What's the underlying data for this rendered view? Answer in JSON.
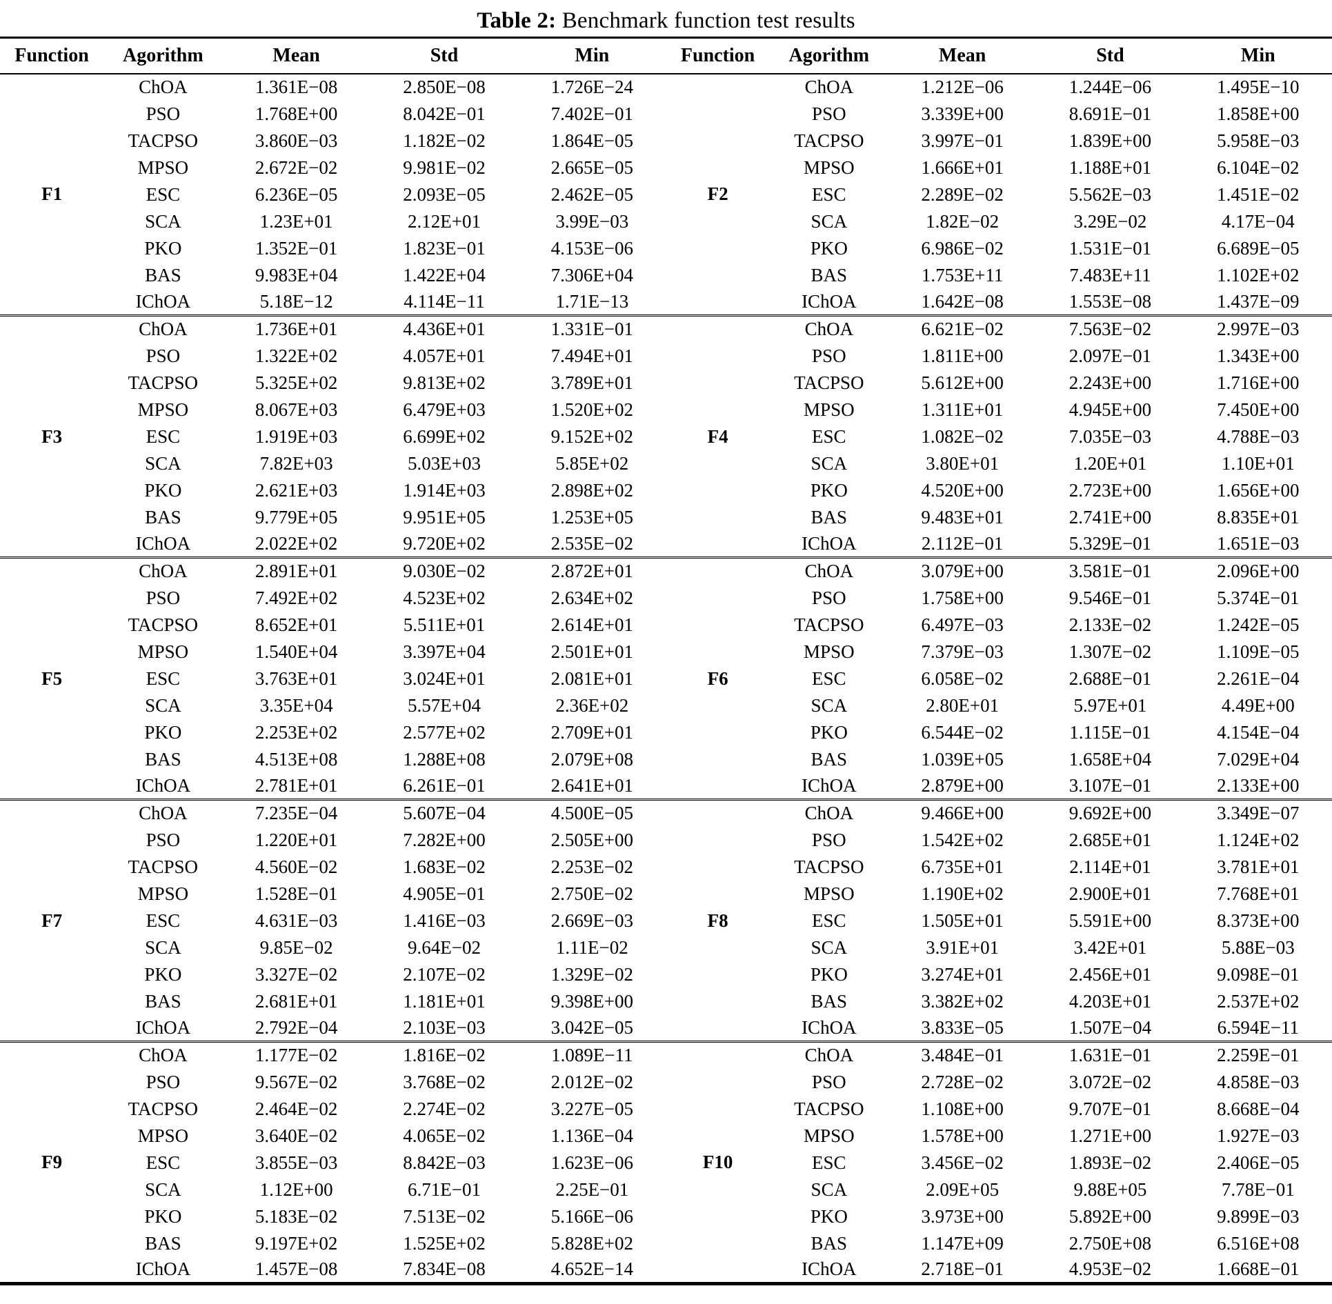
{
  "title": {
    "bold": "Table 2:",
    "text": " Benchmark function test results"
  },
  "header": {
    "columns": [
      "Function",
      "Agorithm",
      "Mean",
      "Std",
      "Min"
    ]
  },
  "table": {
    "blocks": [
      {
        "left": {
          "function": "F1",
          "rows": [
            {
              "algorithm": "ChOA",
              "mean": "1.361E−08",
              "std": "2.850E−08",
              "min": "1.726E−24"
            },
            {
              "algorithm": "PSO",
              "mean": "1.768E+00",
              "std": "8.042E−01",
              "min": "7.402E−01"
            },
            {
              "algorithm": "TACPSO",
              "mean": "3.860E−03",
              "std": "1.182E−02",
              "min": "1.864E−05"
            },
            {
              "algorithm": "MPSO",
              "mean": "2.672E−02",
              "std": "9.981E−02",
              "min": "2.665E−05"
            },
            {
              "algorithm": "ESC",
              "mean": "6.236E−05",
              "std": "2.093E−05",
              "min": "2.462E−05"
            },
            {
              "algorithm": "SCA",
              "mean": "1.23E+01",
              "std": "2.12E+01",
              "min": "3.99E−03"
            },
            {
              "algorithm": "PKO",
              "mean": "1.352E−01",
              "std": "1.823E−01",
              "min": "4.153E−06"
            },
            {
              "algorithm": "BAS",
              "mean": "9.983E+04",
              "std": "1.422E+04",
              "min": "7.306E+04"
            },
            {
              "algorithm": "IChOA",
              "mean": "5.18E−12",
              "std": "4.114E−11",
              "min": "1.71E−13"
            }
          ]
        },
        "right": {
          "function": "F2",
          "rows": [
            {
              "algorithm": "ChOA",
              "mean": "1.212E−06",
              "std": "1.244E−06",
              "min": "1.495E−10"
            },
            {
              "algorithm": "PSO",
              "mean": "3.339E+00",
              "std": "8.691E−01",
              "min": "1.858E+00"
            },
            {
              "algorithm": "TACPSO",
              "mean": "3.997E−01",
              "std": "1.839E+00",
              "min": "5.958E−03"
            },
            {
              "algorithm": "MPSO",
              "mean": "1.666E+01",
              "std": "1.188E+01",
              "min": "6.104E−02"
            },
            {
              "algorithm": "ESC",
              "mean": "2.289E−02",
              "std": "5.562E−03",
              "min": "1.451E−02"
            },
            {
              "algorithm": "SCA",
              "mean": "1.82E−02",
              "std": "3.29E−02",
              "min": "4.17E−04"
            },
            {
              "algorithm": "PKO",
              "mean": "6.986E−02",
              "std": "1.531E−01",
              "min": "6.689E−05"
            },
            {
              "algorithm": "BAS",
              "mean": "1.753E+11",
              "std": "7.483E+11",
              "min": "1.102E+02"
            },
            {
              "algorithm": "IChOA",
              "mean": "1.642E−08",
              "std": "1.553E−08",
              "min": "1.437E−09"
            }
          ]
        }
      },
      {
        "left": {
          "function": "F3",
          "rows": [
            {
              "algorithm": "ChOA",
              "mean": "1.736E+01",
              "std": "4.436E+01",
              "min": "1.331E−01"
            },
            {
              "algorithm": "PSO",
              "mean": "1.322E+02",
              "std": "4.057E+01",
              "min": "7.494E+01"
            },
            {
              "algorithm": "TACPSO",
              "mean": "5.325E+02",
              "std": "9.813E+02",
              "min": "3.789E+01"
            },
            {
              "algorithm": "MPSO",
              "mean": "8.067E+03",
              "std": "6.479E+03",
              "min": "1.520E+02"
            },
            {
              "algorithm": "ESC",
              "mean": "1.919E+03",
              "std": "6.699E+02",
              "min": "9.152E+02"
            },
            {
              "algorithm": "SCA",
              "mean": "7.82E+03",
              "std": "5.03E+03",
              "min": "5.85E+02"
            },
            {
              "algorithm": "PKO",
              "mean": "2.621E+03",
              "std": "1.914E+03",
              "min": "2.898E+02"
            },
            {
              "algorithm": "BAS",
              "mean": "9.779E+05",
              "std": "9.951E+05",
              "min": "1.253E+05"
            },
            {
              "algorithm": "IChOA",
              "mean": "2.022E+02",
              "std": "9.720E+02",
              "min": "2.535E−02"
            }
          ]
        },
        "right": {
          "function": "F4",
          "rows": [
            {
              "algorithm": "ChOA",
              "mean": "6.621E−02",
              "std": "7.563E−02",
              "min": "2.997E−03"
            },
            {
              "algorithm": "PSO",
              "mean": "1.811E+00",
              "std": "2.097E−01",
              "min": "1.343E+00"
            },
            {
              "algorithm": "TACPSO",
              "mean": "5.612E+00",
              "std": "2.243E+00",
              "min": "1.716E+00"
            },
            {
              "algorithm": "MPSO",
              "mean": "1.311E+01",
              "std": "4.945E+00",
              "min": "7.450E+00"
            },
            {
              "algorithm": "ESC",
              "mean": "1.082E−02",
              "std": "7.035E−03",
              "min": "4.788E−03"
            },
            {
              "algorithm": "SCA",
              "mean": "3.80E+01",
              "std": "1.20E+01",
              "min": "1.10E+01"
            },
            {
              "algorithm": "PKO",
              "mean": "4.520E+00",
              "std": "2.723E+00",
              "min": "1.656E+00"
            },
            {
              "algorithm": "BAS",
              "mean": "9.483E+01",
              "std": "2.741E+00",
              "min": "8.835E+01"
            },
            {
              "algorithm": "IChOA",
              "mean": "2.112E−01",
              "std": "5.329E−01",
              "min": "1.651E−03"
            }
          ]
        }
      },
      {
        "left": {
          "function": "F5",
          "rows": [
            {
              "algorithm": "ChOA",
              "mean": "2.891E+01",
              "std": "9.030E−02",
              "min": "2.872E+01"
            },
            {
              "algorithm": "PSO",
              "mean": "7.492E+02",
              "std": "4.523E+02",
              "min": "2.634E+02"
            },
            {
              "algorithm": "TACPSO",
              "mean": "8.652E+01",
              "std": "5.511E+01",
              "min": "2.614E+01"
            },
            {
              "algorithm": "MPSO",
              "mean": "1.540E+04",
              "std": "3.397E+04",
              "min": "2.501E+01"
            },
            {
              "algorithm": "ESC",
              "mean": "3.763E+01",
              "std": "3.024E+01",
              "min": "2.081E+01"
            },
            {
              "algorithm": "SCA",
              "mean": "3.35E+04",
              "std": "5.57E+04",
              "min": "2.36E+02"
            },
            {
              "algorithm": "PKO",
              "mean": "2.253E+02",
              "std": "2.577E+02",
              "min": "2.709E+01"
            },
            {
              "algorithm": "BAS",
              "mean": "4.513E+08",
              "std": "1.288E+08",
              "min": "2.079E+08"
            },
            {
              "algorithm": "IChOA",
              "mean": "2.781E+01",
              "std": "6.261E−01",
              "min": "2.641E+01"
            }
          ]
        },
        "right": {
          "function": "F6",
          "rows": [
            {
              "algorithm": "ChOA",
              "mean": "3.079E+00",
              "std": "3.581E−01",
              "min": "2.096E+00"
            },
            {
              "algorithm": "PSO",
              "mean": "1.758E+00",
              "std": "9.546E−01",
              "min": "5.374E−01"
            },
            {
              "algorithm": "TACPSO",
              "mean": "6.497E−03",
              "std": "2.133E−02",
              "min": "1.242E−05"
            },
            {
              "algorithm": "MPSO",
              "mean": "7.379E−03",
              "std": "1.307E−02",
              "min": "1.109E−05"
            },
            {
              "algorithm": "ESC",
              "mean": "6.058E−02",
              "std": "2.688E−01",
              "min": "2.261E−04"
            },
            {
              "algorithm": "SCA",
              "mean": "2.80E+01",
              "std": "5.97E+01",
              "min": "4.49E+00"
            },
            {
              "algorithm": "PKO",
              "mean": "6.544E−02",
              "std": "1.115E−01",
              "min": "4.154E−04"
            },
            {
              "algorithm": "BAS",
              "mean": "1.039E+05",
              "std": "1.658E+04",
              "min": "7.029E+04"
            },
            {
              "algorithm": "IChOA",
              "mean": "2.879E+00",
              "std": "3.107E−01",
              "min": "2.133E+00"
            }
          ]
        }
      },
      {
        "left": {
          "function": "F7",
          "rows": [
            {
              "algorithm": "ChOA",
              "mean": "7.235E−04",
              "std": "5.607E−04",
              "min": "4.500E−05"
            },
            {
              "algorithm": "PSO",
              "mean": "1.220E+01",
              "std": "7.282E+00",
              "min": "2.505E+00"
            },
            {
              "algorithm": "TACPSO",
              "mean": "4.560E−02",
              "std": "1.683E−02",
              "min": "2.253E−02"
            },
            {
              "algorithm": "MPSO",
              "mean": "1.528E−01",
              "std": "4.905E−01",
              "min": "2.750E−02"
            },
            {
              "algorithm": "ESC",
              "mean": "4.631E−03",
              "std": "1.416E−03",
              "min": "2.669E−03"
            },
            {
              "algorithm": "SCA",
              "mean": "9.85E−02",
              "std": "9.64E−02",
              "min": "1.11E−02"
            },
            {
              "algorithm": "PKO",
              "mean": "3.327E−02",
              "std": "2.107E−02",
              "min": "1.329E−02"
            },
            {
              "algorithm": "BAS",
              "mean": "2.681E+01",
              "std": "1.181E+01",
              "min": "9.398E+00"
            },
            {
              "algorithm": "IChOA",
              "mean": "2.792E−04",
              "std": "2.103E−03",
              "min": "3.042E−05"
            }
          ]
        },
        "right": {
          "function": "F8",
          "rows": [
            {
              "algorithm": "ChOA",
              "mean": "9.466E+00",
              "std": "9.692E+00",
              "min": "3.349E−07"
            },
            {
              "algorithm": "PSO",
              "mean": "1.542E+02",
              "std": "2.685E+01",
              "min": "1.124E+02"
            },
            {
              "algorithm": "TACPSO",
              "mean": "6.735E+01",
              "std": "2.114E+01",
              "min": "3.781E+01"
            },
            {
              "algorithm": "MPSO",
              "mean": "1.190E+02",
              "std": "2.900E+01",
              "min": "7.768E+01"
            },
            {
              "algorithm": "ESC",
              "mean": "1.505E+01",
              "std": "5.591E+00",
              "min": "8.373E+00"
            },
            {
              "algorithm": "SCA",
              "mean": "3.91E+01",
              "std": "3.42E+01",
              "min": "5.88E−03"
            },
            {
              "algorithm": "PKO",
              "mean": "3.274E+01",
              "std": "2.456E+01",
              "min": "9.098E−01"
            },
            {
              "algorithm": "BAS",
              "mean": "3.382E+02",
              "std": "4.203E+01",
              "min": "2.537E+02"
            },
            {
              "algorithm": "IChOA",
              "mean": "3.833E−05",
              "std": "1.507E−04",
              "min": "6.594E−11"
            }
          ]
        }
      },
      {
        "left": {
          "function": "F9",
          "rows": [
            {
              "algorithm": "ChOA",
              "mean": "1.177E−02",
              "std": "1.816E−02",
              "min": "1.089E−11"
            },
            {
              "algorithm": "PSO",
              "mean": "9.567E−02",
              "std": "3.768E−02",
              "min": "2.012E−02"
            },
            {
              "algorithm": "TACPSO",
              "mean": "2.464E−02",
              "std": "2.274E−02",
              "min": "3.227E−05"
            },
            {
              "algorithm": "MPSO",
              "mean": "3.640E−02",
              "std": "4.065E−02",
              "min": "1.136E−04"
            },
            {
              "algorithm": "ESC",
              "mean": "3.855E−03",
              "std": "8.842E−03",
              "min": "1.623E−06"
            },
            {
              "algorithm": "SCA",
              "mean": "1.12E+00",
              "std": "6.71E−01",
              "min": "2.25E−01"
            },
            {
              "algorithm": "PKO",
              "mean": "5.183E−02",
              "std": "7.513E−02",
              "min": "5.166E−06"
            },
            {
              "algorithm": "BAS",
              "mean": "9.197E+02",
              "std": "1.525E+02",
              "min": "5.828E+02"
            },
            {
              "algorithm": "IChOA",
              "mean": "1.457E−08",
              "std": "7.834E−08",
              "min": "4.652E−14"
            }
          ]
        },
        "right": {
          "function": "F10",
          "rows": [
            {
              "algorithm": "ChOA",
              "mean": "3.484E−01",
              "std": "1.631E−01",
              "min": "2.259E−01"
            },
            {
              "algorithm": "PSO",
              "mean": "2.728E−02",
              "std": "3.072E−02",
              "min": "4.858E−03"
            },
            {
              "algorithm": "TACPSO",
              "mean": "1.108E+00",
              "std": "9.707E−01",
              "min": "8.668E−04"
            },
            {
              "algorithm": "MPSO",
              "mean": "1.578E+00",
              "std": "1.271E+00",
              "min": "1.927E−03"
            },
            {
              "algorithm": "ESC",
              "mean": "3.456E−02",
              "std": "1.893E−02",
              "min": "2.406E−05"
            },
            {
              "algorithm": "SCA",
              "mean": "2.09E+05",
              "std": "9.88E+05",
              "min": "7.78E−01"
            },
            {
              "algorithm": "PKO",
              "mean": "3.973E+00",
              "std": "5.892E+00",
              "min": "9.899E−03"
            },
            {
              "algorithm": "BAS",
              "mean": "1.147E+09",
              "std": "2.750E+08",
              "min": "6.516E+08"
            },
            {
              "algorithm": "IChOA",
              "mean": "2.718E−01",
              "std": "4.953E−02",
              "min": "1.668E−01"
            }
          ]
        }
      }
    ]
  }
}
